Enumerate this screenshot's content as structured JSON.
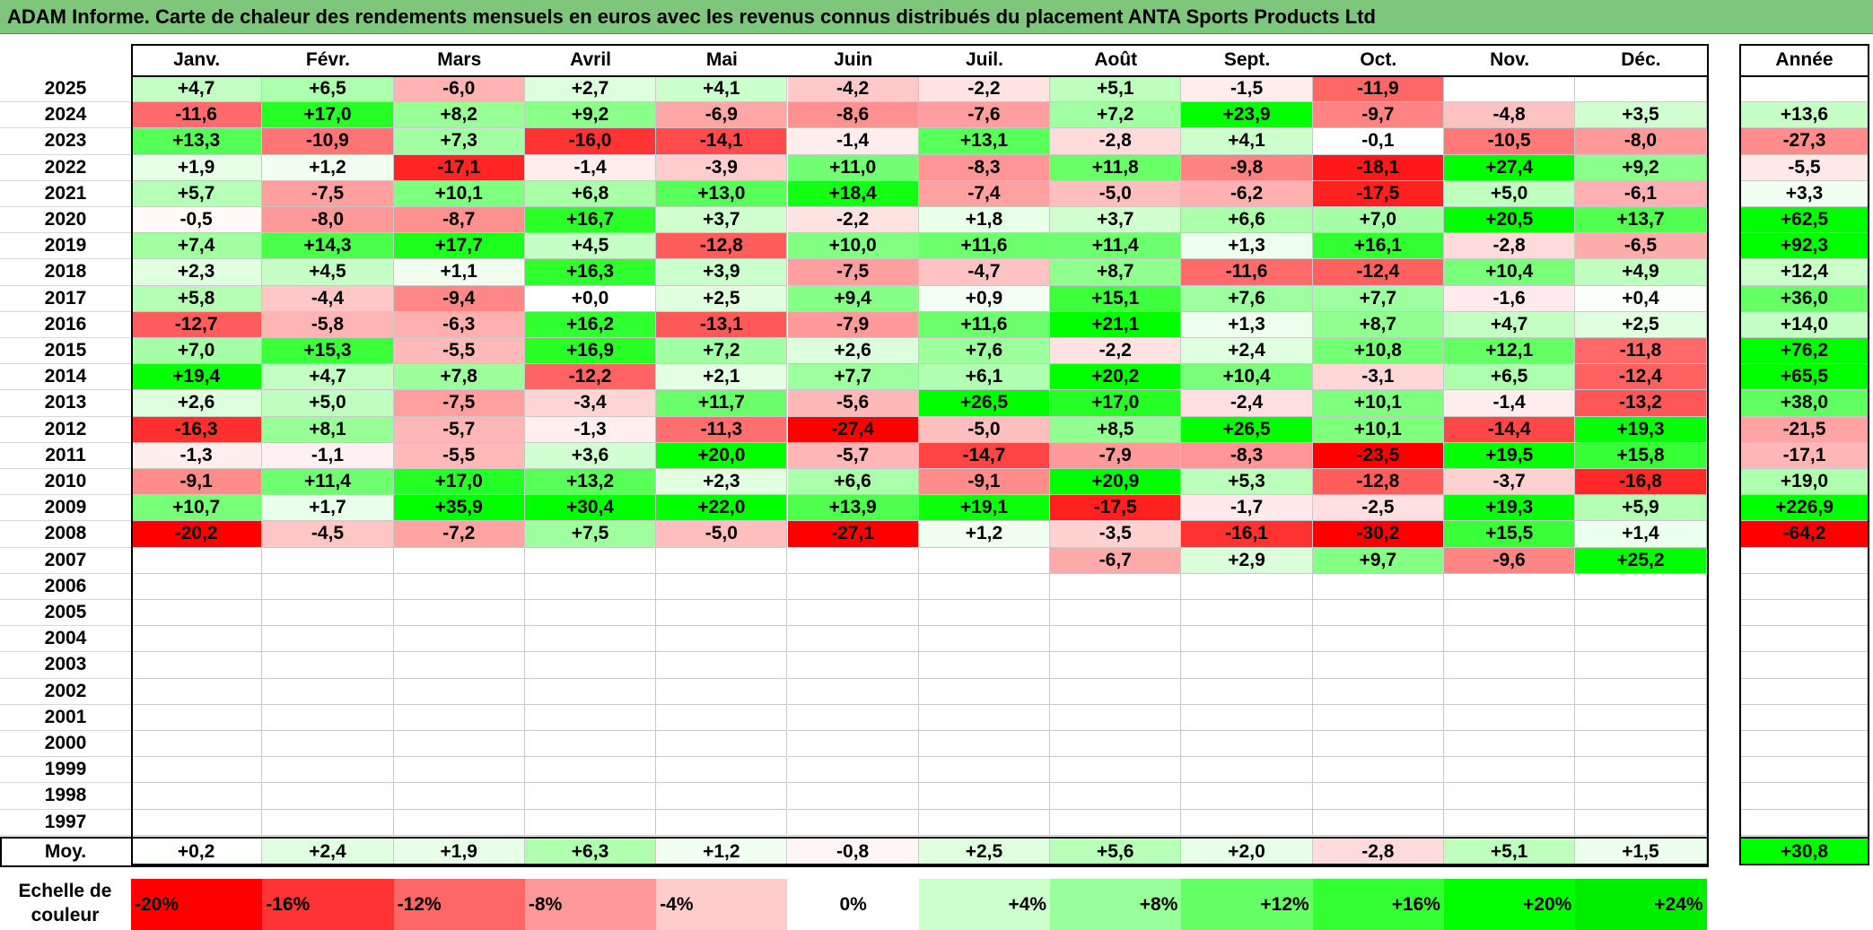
{
  "title": "ADAM Informe. Carte de chaleur des rendements mensuels en euros avec les revenus connus distribués du placement ANTA Sports Products Ltd",
  "chart_data": {
    "type": "heatmap",
    "months": [
      "Janv.",
      "Févr.",
      "Mars",
      "Avril",
      "Mai",
      "Juin",
      "Juil.",
      "Août",
      "Sept.",
      "Oct.",
      "Nov.",
      "Déc."
    ],
    "year_header": "Année",
    "rows": [
      {
        "year": "2025",
        "values": [
          "+4,7",
          "+6,5",
          "-6,0",
          "+2,7",
          "+4,1",
          "-4,2",
          "-2,2",
          "+5,1",
          "-1,5",
          "-11,9",
          "",
          ""
        ],
        "annual": ""
      },
      {
        "year": "2024",
        "values": [
          "-11,6",
          "+17,0",
          "+8,2",
          "+9,2",
          "-6,9",
          "-8,6",
          "-7,6",
          "+7,2",
          "+23,9",
          "-9,7",
          "-4,8",
          "+3,5"
        ],
        "annual": "+13,6"
      },
      {
        "year": "2023",
        "values": [
          "+13,3",
          "-10,9",
          "+7,3",
          "-16,0",
          "-14,1",
          "-1,4",
          "+13,1",
          "-2,8",
          "+4,1",
          "-0,1",
          "-10,5",
          "-8,0"
        ],
        "annual": "-27,3"
      },
      {
        "year": "2022",
        "values": [
          "+1,9",
          "+1,2",
          "-17,1",
          "-1,4",
          "-3,9",
          "+11,0",
          "-8,3",
          "+11,8",
          "-9,8",
          "-18,1",
          "+27,4",
          "+9,2"
        ],
        "annual": "-5,5"
      },
      {
        "year": "2021",
        "values": [
          "+5,7",
          "-7,5",
          "+10,1",
          "+6,8",
          "+13,0",
          "+18,4",
          "-7,4",
          "-5,0",
          "-6,2",
          "-17,5",
          "+5,0",
          "-6,1"
        ],
        "annual": "+3,3"
      },
      {
        "year": "2020",
        "values": [
          "-0,5",
          "-8,0",
          "-8,7",
          "+16,7",
          "+3,7",
          "-2,2",
          "+1,8",
          "+3,7",
          "+6,6",
          "+7,0",
          "+20,5",
          "+13,7"
        ],
        "annual": "+62,5"
      },
      {
        "year": "2019",
        "values": [
          "+7,4",
          "+14,3",
          "+17,7",
          "+4,5",
          "-12,8",
          "+10,0",
          "+11,6",
          "+11,4",
          "+1,3",
          "+16,1",
          "-2,8",
          "-6,5"
        ],
        "annual": "+92,3"
      },
      {
        "year": "2018",
        "values": [
          "+2,3",
          "+4,5",
          "+1,1",
          "+16,3",
          "+3,9",
          "-7,5",
          "-4,7",
          "+8,7",
          "-11,6",
          "-12,4",
          "+10,4",
          "+4,9"
        ],
        "annual": "+12,4"
      },
      {
        "year": "2017",
        "values": [
          "+5,8",
          "-4,4",
          "-9,4",
          "+0,0",
          "+2,5",
          "+9,4",
          "+0,9",
          "+15,1",
          "+7,6",
          "+7,7",
          "-1,6",
          "+0,4"
        ],
        "annual": "+36,0"
      },
      {
        "year": "2016",
        "values": [
          "-12,7",
          "-5,8",
          "-6,3",
          "+16,2",
          "-13,1",
          "-7,9",
          "+11,6",
          "+21,1",
          "+1,3",
          "+8,7",
          "+4,7",
          "+2,5"
        ],
        "annual": "+14,0"
      },
      {
        "year": "2015",
        "values": [
          "+7,0",
          "+15,3",
          "-5,5",
          "+16,9",
          "+7,2",
          "+2,6",
          "+7,6",
          "-2,2",
          "+2,4",
          "+10,8",
          "+12,1",
          "-11,8"
        ],
        "annual": "+76,2"
      },
      {
        "year": "2014",
        "values": [
          "+19,4",
          "+4,7",
          "+7,8",
          "-12,2",
          "+2,1",
          "+7,7",
          "+6,1",
          "+20,2",
          "+10,4",
          "-3,1",
          "+6,5",
          "-12,4"
        ],
        "annual": "+65,5"
      },
      {
        "year": "2013",
        "values": [
          "+2,6",
          "+5,0",
          "-7,5",
          "-3,4",
          "+11,7",
          "-5,6",
          "+26,5",
          "+17,0",
          "-2,4",
          "+10,1",
          "-1,4",
          "-13,2"
        ],
        "annual": "+38,0"
      },
      {
        "year": "2012",
        "values": [
          "-16,3",
          "+8,1",
          "-5,7",
          "-1,3",
          "-11,3",
          "-27,4",
          "-5,0",
          "+8,5",
          "+26,5",
          "+10,1",
          "-14,4",
          "+19,3"
        ],
        "annual": "-21,5"
      },
      {
        "year": "2011",
        "values": [
          "-1,3",
          "-1,1",
          "-5,5",
          "+3,6",
          "+20,0",
          "-5,7",
          "-14,7",
          "-7,9",
          "-8,3",
          "-23,5",
          "+19,5",
          "+15,8"
        ],
        "annual": "-17,1"
      },
      {
        "year": "2010",
        "values": [
          "-9,1",
          "+11,4",
          "+17,0",
          "+13,2",
          "+2,3",
          "+6,6",
          "-9,1",
          "+20,9",
          "+5,3",
          "-12,8",
          "-3,7",
          "-16,8"
        ],
        "annual": "+19,0"
      },
      {
        "year": "2009",
        "values": [
          "+10,7",
          "+1,7",
          "+35,9",
          "+30,4",
          "+22,0",
          "+13,9",
          "+19,1",
          "-17,5",
          "-1,7",
          "-2,5",
          "+19,3",
          "+5,9"
        ],
        "annual": "+226,9"
      },
      {
        "year": "2008",
        "values": [
          "-20,2",
          "-4,5",
          "-7,2",
          "+7,5",
          "-5,0",
          "-27,1",
          "+1,2",
          "-3,5",
          "-16,1",
          "-30,2",
          "+15,5",
          "+1,4"
        ],
        "annual": "-64,2"
      },
      {
        "year": "2007",
        "values": [
          "",
          "",
          "",
          "",
          "",
          "",
          "",
          "-6,7",
          "+2,9",
          "+9,7",
          "-9,6",
          "+25,2"
        ],
        "annual": ""
      },
      {
        "year": "2006",
        "values": [
          "",
          "",
          "",
          "",
          "",
          "",
          "",
          "",
          "",
          "",
          "",
          ""
        ],
        "annual": ""
      },
      {
        "year": "2005",
        "values": [
          "",
          "",
          "",
          "",
          "",
          "",
          "",
          "",
          "",
          "",
          "",
          ""
        ],
        "annual": ""
      },
      {
        "year": "2004",
        "values": [
          "",
          "",
          "",
          "",
          "",
          "",
          "",
          "",
          "",
          "",
          "",
          ""
        ],
        "annual": ""
      },
      {
        "year": "2003",
        "values": [
          "",
          "",
          "",
          "",
          "",
          "",
          "",
          "",
          "",
          "",
          "",
          ""
        ],
        "annual": ""
      },
      {
        "year": "2002",
        "values": [
          "",
          "",
          "",
          "",
          "",
          "",
          "",
          "",
          "",
          "",
          "",
          ""
        ],
        "annual": ""
      },
      {
        "year": "2001",
        "values": [
          "",
          "",
          "",
          "",
          "",
          "",
          "",
          "",
          "",
          "",
          "",
          ""
        ],
        "annual": ""
      },
      {
        "year": "2000",
        "values": [
          "",
          "",
          "",
          "",
          "",
          "",
          "",
          "",
          "",
          "",
          "",
          ""
        ],
        "annual": ""
      },
      {
        "year": "1999",
        "values": [
          "",
          "",
          "",
          "",
          "",
          "",
          "",
          "",
          "",
          "",
          "",
          ""
        ],
        "annual": ""
      },
      {
        "year": "1998",
        "values": [
          "",
          "",
          "",
          "",
          "",
          "",
          "",
          "",
          "",
          "",
          "",
          ""
        ],
        "annual": ""
      },
      {
        "year": "1997",
        "values": [
          "",
          "",
          "",
          "",
          "",
          "",
          "",
          "",
          "",
          "",
          "",
          ""
        ],
        "annual": ""
      }
    ],
    "average": {
      "label": "Moy.",
      "values": [
        "+0,2",
        "+2,4",
        "+1,9",
        "+6,3",
        "+1,2",
        "-0,8",
        "+2,5",
        "+5,6",
        "+2,0",
        "-2,8",
        "+5,1",
        "+1,5"
      ],
      "annual": "+30,8"
    },
    "color_scale": {
      "label": "Echelle de couleur",
      "steps": [
        {
          "label": "-20%",
          "color": "#ff0000"
        },
        {
          "label": "-16%",
          "color": "#ff3333"
        },
        {
          "label": "-12%",
          "color": "#ff6666"
        },
        {
          "label": "-8%",
          "color": "#ff9999"
        },
        {
          "label": "-4%",
          "color": "#ffcccc"
        },
        {
          "label": "0%",
          "color": "#ffffff"
        },
        {
          "label": "+4%",
          "color": "#ccffcc"
        },
        {
          "label": "+8%",
          "color": "#99ff99"
        },
        {
          "label": "+12%",
          "color": "#66ff66"
        },
        {
          "label": "+16%",
          "color": "#33ff33"
        },
        {
          "label": "+20%",
          "color": "#00ff00"
        },
        {
          "label": "+24%",
          "color": "#00ee00"
        }
      ]
    }
  }
}
